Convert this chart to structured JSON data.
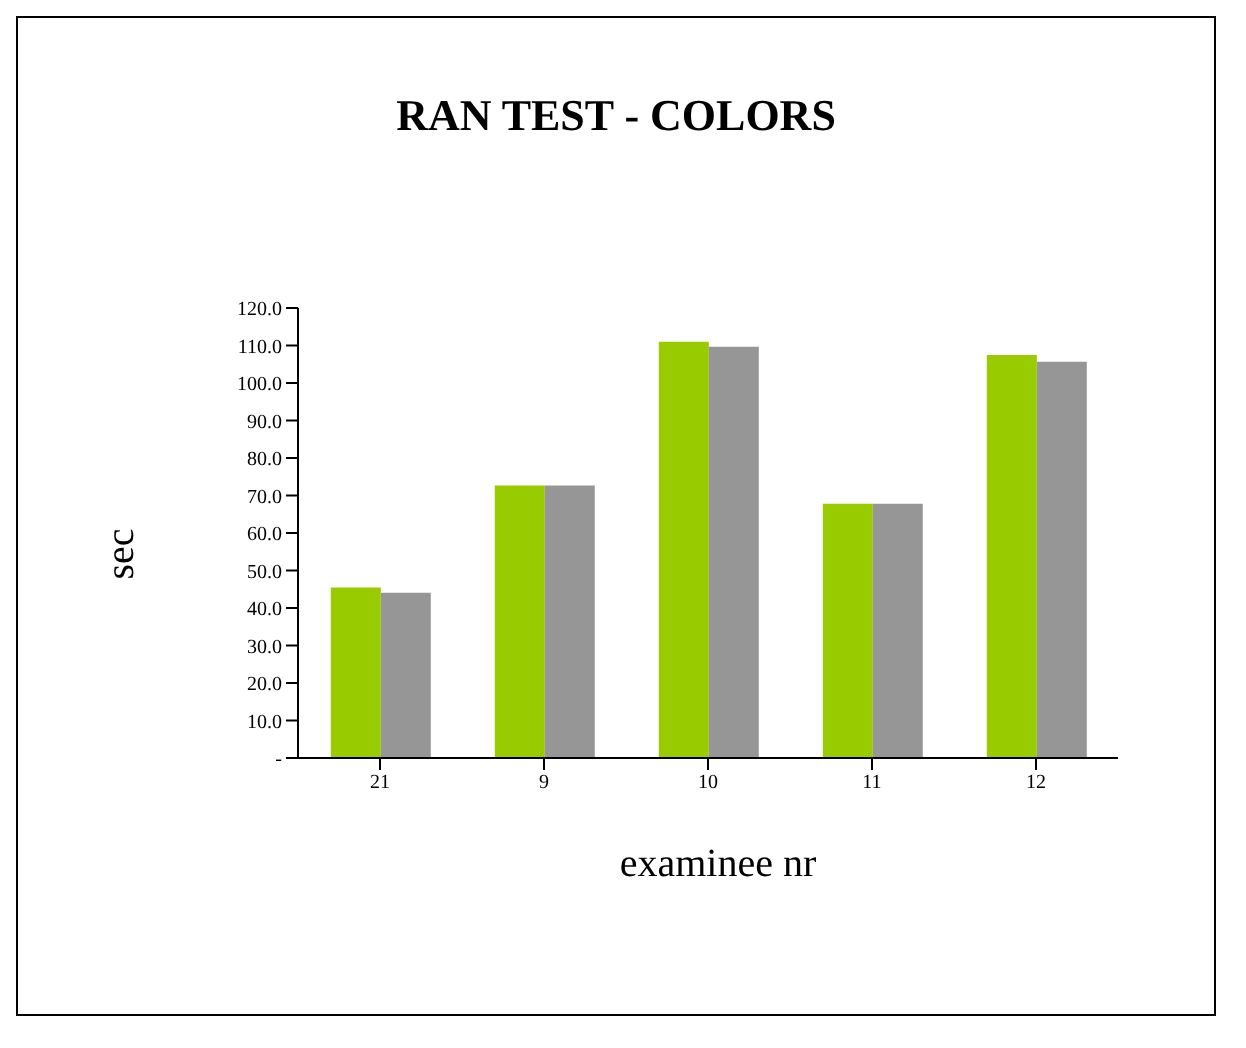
{
  "chart_data": {
    "type": "bar",
    "title": "RAN TEST - COLORS",
    "xlabel": "examinee nr",
    "ylabel": "sec",
    "categories": [
      "21",
      "9",
      "10",
      "11",
      "12"
    ],
    "series": [
      {
        "color": "#99cc00",
        "values": [
          45.5,
          72.7,
          111.0,
          67.8,
          107.5
        ]
      },
      {
        "color": "#969696",
        "values": [
          44.1,
          72.7,
          109.7,
          67.8,
          105.7
        ]
      }
    ],
    "ylim": [
      0,
      120
    ],
    "yticks": [
      {
        "value": 0,
        "label": "-"
      },
      {
        "value": 10,
        "label": "10.0"
      },
      {
        "value": 20,
        "label": "20.0"
      },
      {
        "value": 30,
        "label": "30.0"
      },
      {
        "value": 40,
        "label": "40.0"
      },
      {
        "value": 50,
        "label": "50.0"
      },
      {
        "value": 60,
        "label": "60.0"
      },
      {
        "value": 70,
        "label": "70.0"
      },
      {
        "value": 80,
        "label": "80.0"
      },
      {
        "value": 90,
        "label": "90.0"
      },
      {
        "value": 100,
        "label": "100.0"
      },
      {
        "value": 110,
        "label": "110.0"
      },
      {
        "value": 120,
        "label": "120.0"
      }
    ],
    "grid": false,
    "legend": false
  }
}
